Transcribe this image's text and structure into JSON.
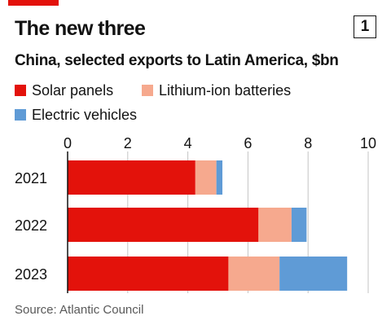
{
  "header": {
    "title": "The new three",
    "badge": "1",
    "subtitle": "China, selected exports to Latin America, $bn"
  },
  "footer": {
    "source": "Source: Atlantic Council"
  },
  "colors": {
    "accent": "#e3120b",
    "solar": "#e3120b",
    "lithium": "#f6a98e",
    "ev": "#5f9bd6",
    "grid": "#c4c4c4"
  },
  "chart_data": {
    "type": "bar",
    "orientation": "horizontal",
    "stacked": true,
    "title": "The new three",
    "subtitle": "China, selected exports to Latin America, $bn",
    "categories": [
      "2021",
      "2022",
      "2023"
    ],
    "series": [
      {
        "name": "Solar panels",
        "color": "#e3120b",
        "values": [
          4.25,
          6.35,
          5.35
        ]
      },
      {
        "name": "Lithium-ion batteries",
        "color": "#f6a98e",
        "values": [
          0.7,
          1.1,
          1.7
        ]
      },
      {
        "name": "Electric vehicles",
        "color": "#5f9bd6",
        "values": [
          0.2,
          0.5,
          2.25
        ]
      }
    ],
    "xlim": [
      0,
      10
    ],
    "xticks": [
      "0",
      "2",
      "4",
      "6",
      "8",
      "10"
    ],
    "xlabel": "",
    "ylabel": "",
    "grid": true,
    "legend_position": "top-left",
    "source": "Source: Atlantic Council"
  }
}
